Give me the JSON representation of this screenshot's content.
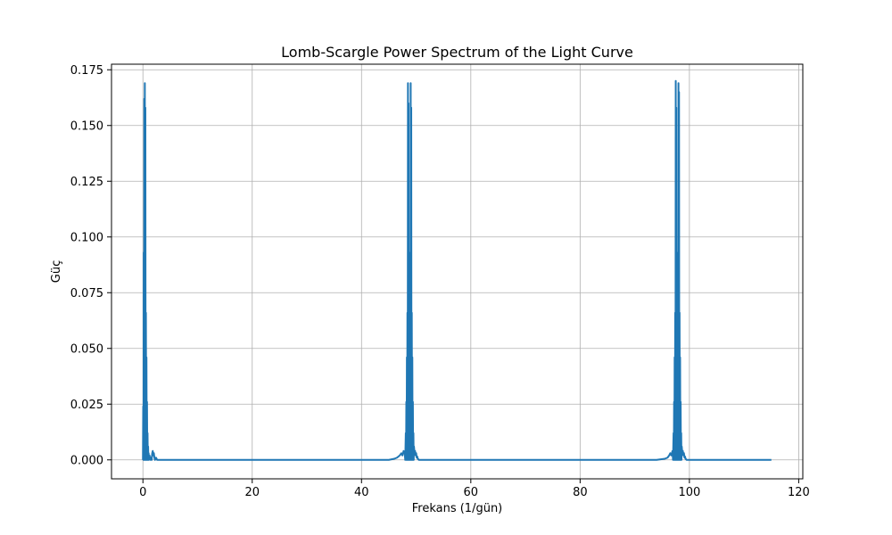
{
  "chart_data": {
    "type": "line",
    "title": "Lomb-Scargle Power Spectrum of the Light Curve",
    "xlabel": "Frekans (1/gün)",
    "ylabel": "Güç",
    "xlim": [
      -5.75,
      120.75
    ],
    "ylim": [
      -0.0085,
      0.1775
    ],
    "x_ticks": [
      0,
      20,
      40,
      60,
      80,
      100,
      120
    ],
    "y_ticks": [
      0.0,
      0.025,
      0.05,
      0.075,
      0.1,
      0.125,
      0.15,
      0.175
    ],
    "x_tick_labels": [
      "0",
      "20",
      "40",
      "60",
      "80",
      "100",
      "120"
    ],
    "y_tick_labels": [
      "0.000",
      "0.025",
      "0.050",
      "0.075",
      "0.100",
      "0.125",
      "0.150",
      "0.175"
    ],
    "grid": true,
    "series_color": "#1f77b4",
    "series": [
      {
        "x": [
          0.0,
          0.05,
          0.1,
          0.15,
          0.2,
          0.25,
          0.3,
          0.35,
          0.4,
          0.45,
          0.5,
          0.55,
          0.6,
          0.65,
          0.7,
          0.75,
          0.8,
          0.85,
          0.9,
          0.95,
          1.0,
          1.05,
          1.1,
          1.2,
          1.3,
          1.4,
          1.5,
          1.6,
          1.7,
          1.8,
          1.9,
          2.0,
          2.1,
          2.2,
          2.4,
          2.6,
          3.0,
          4.0,
          10.0,
          20.0,
          30.0,
          40.0,
          45.0,
          46.0,
          46.5,
          47.0,
          47.3,
          47.5,
          47.7,
          47.9,
          48.0,
          48.1,
          48.15,
          48.2,
          48.25,
          48.3,
          48.35,
          48.4,
          48.45,
          48.5,
          48.55,
          48.6,
          48.65,
          48.7,
          48.75,
          48.8,
          48.85,
          48.9,
          48.95,
          49.0,
          49.05,
          49.1,
          49.15,
          49.2,
          49.25,
          49.3,
          49.35,
          49.4,
          49.45,
          49.5,
          49.55,
          49.6,
          49.7,
          49.8,
          49.9,
          50.0,
          50.1,
          50.2,
          50.3,
          50.5,
          51.0,
          52.0,
          55.0,
          60.0,
          70.0,
          80.0,
          90.0,
          94.0,
          95.5,
          96.0,
          96.3,
          96.5,
          96.7,
          96.9,
          97.0,
          97.1,
          97.15,
          97.2,
          97.25,
          97.3,
          97.35,
          97.4,
          97.45,
          97.5,
          97.55,
          97.6,
          97.65,
          97.7,
          97.75,
          97.8,
          97.85,
          97.9,
          97.95,
          98.0,
          98.05,
          98.1,
          98.15,
          98.2,
          98.25,
          98.3,
          98.35,
          98.4,
          98.45,
          98.5,
          98.55,
          98.6,
          98.7,
          98.8,
          98.9,
          99.0,
          99.1,
          99.2,
          99.3,
          99.5,
          100.0,
          101.0,
          105.0,
          110.0,
          115.0
        ],
        "y": [
          0.0,
          0.024,
          0.0,
          0.093,
          0.0,
          0.162,
          0.0,
          0.169,
          0.0,
          0.158,
          0.0,
          0.066,
          0.0,
          0.046,
          0.0,
          0.026,
          0.0,
          0.012,
          0.0,
          0.006,
          0.0,
          0.003,
          0.0,
          0.002,
          0.001,
          0.0,
          0.001,
          0.0,
          0.003,
          0.004,
          0.002,
          0.003,
          0.001,
          0.0,
          0.001,
          0.0,
          0.0,
          0.0,
          0.0,
          0.0,
          0.0,
          0.0,
          0.0,
          0.0005,
          0.001,
          0.002,
          0.003,
          0.002,
          0.004,
          0.003,
          0.0,
          0.012,
          0.0,
          0.026,
          0.0,
          0.046,
          0.0,
          0.066,
          0.0,
          0.169,
          0.0,
          0.16,
          0.0,
          0.093,
          0.0,
          0.066,
          0.0,
          0.046,
          0.0,
          0.169,
          0.0,
          0.158,
          0.0,
          0.066,
          0.0,
          0.046,
          0.0,
          0.026,
          0.0,
          0.012,
          0.0,
          0.006,
          0.003,
          0.004,
          0.002,
          0.003,
          0.001,
          0.0015,
          0.0005,
          0.0,
          0.0,
          0.0,
          0.0,
          0.0,
          0.0,
          0.0,
          0.0,
          0.0,
          0.0005,
          0.001,
          0.002,
          0.003,
          0.002,
          0.004,
          0.0,
          0.012,
          0.0,
          0.026,
          0.0,
          0.046,
          0.0,
          0.066,
          0.0,
          0.17,
          0.0,
          0.158,
          0.0,
          0.093,
          0.0,
          0.066,
          0.0,
          0.046,
          0.0,
          0.169,
          0.0,
          0.165,
          0.0,
          0.066,
          0.0,
          0.046,
          0.0,
          0.026,
          0.0,
          0.012,
          0.0,
          0.006,
          0.003,
          0.004,
          0.002,
          0.003,
          0.001,
          0.0015,
          0.0005,
          0.0,
          0.0,
          0.0,
          0.0,
          0.0,
          0.0
        ]
      }
    ]
  }
}
